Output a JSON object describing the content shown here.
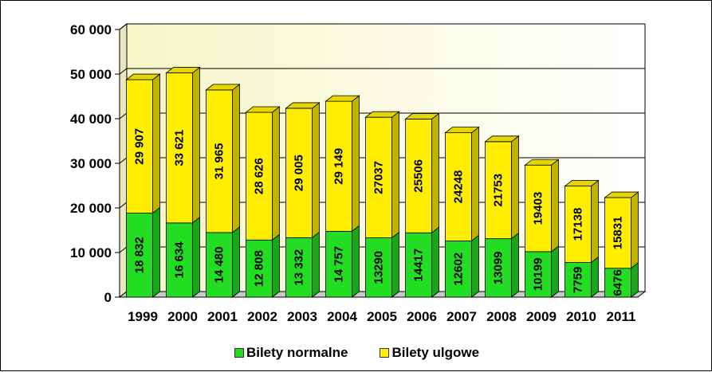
{
  "chart_data": {
    "type": "bar",
    "stacked": true,
    "categories": [
      "1999",
      "2000",
      "2001",
      "2002",
      "2003",
      "2004",
      "2005",
      "2006",
      "2007",
      "2008",
      "2009",
      "2010",
      "2011"
    ],
    "series": [
      {
        "name": "Bilety normalne",
        "color": "#22dd22",
        "values": [
          18832,
          16634,
          14480,
          12808,
          13332,
          14757,
          13290,
          14417,
          12602,
          13099,
          10199,
          7759,
          6476
        ],
        "labels": [
          "18 832",
          "16 634",
          "14 480",
          "12 808",
          "13 332",
          "14 757",
          "13290",
          "14417",
          "12602",
          "13099",
          "10199",
          "7759",
          "6476"
        ]
      },
      {
        "name": "Bilety ulgowe",
        "color": "#ffee00",
        "values": [
          29907,
          33621,
          31965,
          28626,
          29005,
          29149,
          27037,
          25506,
          24248,
          21753,
          19403,
          17138,
          15831
        ],
        "labels": [
          "29 907",
          "33 621",
          "31 965",
          "28 626",
          "29 005",
          "29 149",
          "27037",
          "25506",
          "24248",
          "21753",
          "19403",
          "17138",
          "15831"
        ]
      }
    ],
    "ylim": [
      0,
      60000
    ],
    "yticks": [
      0,
      10000,
      20000,
      30000,
      40000,
      50000,
      60000
    ],
    "ytick_labels": [
      "0",
      "10 000",
      "20 000",
      "30 000",
      "40 000",
      "50 000",
      "60 000"
    ],
    "grid": true,
    "legend_position": "bottom",
    "style": "3d-stacked-column"
  }
}
